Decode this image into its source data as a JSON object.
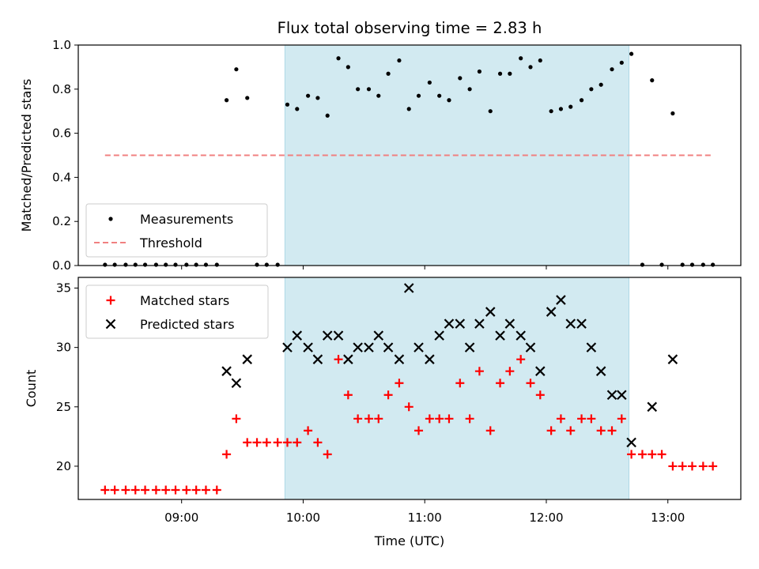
{
  "chart_data": [
    {
      "type": "scatter",
      "title": "Flux total observing time = 2.83 h",
      "xlabel": "",
      "ylabel": "Matched/Predicted stars",
      "xlim_hours": [
        8.15,
        13.6
      ],
      "ylim": [
        0,
        1.0
      ],
      "yticks": [
        "0.0",
        "0.2",
        "0.4",
        "0.6",
        "0.8",
        "1.0"
      ],
      "shaded_interval_hours": [
        9.85,
        12.68
      ],
      "shade_color": "#add8e6",
      "legend_position": "lower-left",
      "series": [
        {
          "name": "Measurements",
          "marker": "dot",
          "color": "#000000",
          "x": [
            8.37,
            8.45,
            8.54,
            8.62,
            8.7,
            8.79,
            8.87,
            8.95,
            9.04,
            9.12,
            9.2,
            9.29,
            9.37,
            9.45,
            9.54,
            9.62,
            9.7,
            9.79,
            9.87,
            9.95,
            10.04,
            10.12,
            10.2,
            10.29,
            10.37,
            10.45,
            10.54,
            10.62,
            10.7,
            10.79,
            10.87,
            10.95,
            11.04,
            11.12,
            11.2,
            11.29,
            11.37,
            11.45,
            11.54,
            11.62,
            11.7,
            11.79,
            11.87,
            11.95,
            12.04,
            12.12,
            12.2,
            12.29,
            12.37,
            12.45,
            12.54,
            12.62,
            12.7,
            12.79,
            12.87,
            12.95,
            13.04,
            13.12,
            13.2,
            13.29,
            13.37
          ],
          "y": [
            0,
            0,
            0,
            0,
            0,
            0,
            0,
            0,
            0,
            0,
            0,
            0,
            0.75,
            0.89,
            0.76,
            0,
            0,
            0,
            0.73,
            0.71,
            0.77,
            0.76,
            0.68,
            0.94,
            0.9,
            0.8,
            0.8,
            0.77,
            0.87,
            0.93,
            0.71,
            0.77,
            0.83,
            0.77,
            0.75,
            0.85,
            0.8,
            0.88,
            0.7,
            0.87,
            0.87,
            0.94,
            0.9,
            0.93,
            0.7,
            0.71,
            0.72,
            0.75,
            0.8,
            0.82,
            0.89,
            0.92,
            0.96,
            0,
            0.84,
            0,
            0.69,
            0,
            0,
            0,
            0
          ]
        },
        {
          "name": "Threshold",
          "marker": "dashed-line",
          "color": "#f08080",
          "x": [
            8.37,
            13.37
          ],
          "y": [
            0.5,
            0.5
          ]
        }
      ]
    },
    {
      "type": "scatter",
      "title": "",
      "xlabel": "Time (UTC)",
      "ylabel": "Count",
      "xlim_hours": [
        8.15,
        13.6
      ],
      "ylim": [
        17.2,
        35.9
      ],
      "yticks": [
        "20",
        "25",
        "30",
        "35"
      ],
      "xticks_hours": [
        9,
        10,
        11,
        12,
        13
      ],
      "xtick_labels": [
        "09:00",
        "10:00",
        "11:00",
        "12:00",
        "13:00"
      ],
      "shaded_interval_hours": [
        9.85,
        12.68
      ],
      "shade_color": "#add8e6",
      "legend_position": "upper-left",
      "series": [
        {
          "name": "Matched stars",
          "marker": "plus",
          "color": "#ff0000",
          "x": [
            8.37,
            8.45,
            8.54,
            8.62,
            8.7,
            8.79,
            8.87,
            8.95,
            9.04,
            9.12,
            9.2,
            9.29,
            9.37,
            9.45,
            9.54,
            9.62,
            9.7,
            9.79,
            9.87,
            9.95,
            10.04,
            10.12,
            10.2,
            10.29,
            10.37,
            10.45,
            10.54,
            10.62,
            10.7,
            10.79,
            10.87,
            10.95,
            11.04,
            11.12,
            11.2,
            11.29,
            11.37,
            11.45,
            11.54,
            11.62,
            11.7,
            11.79,
            11.87,
            11.95,
            12.04,
            12.12,
            12.2,
            12.29,
            12.37,
            12.45,
            12.54,
            12.62,
            12.7,
            12.79,
            12.87,
            12.95,
            13.04,
            13.12,
            13.2,
            13.29,
            13.37
          ],
          "y": [
            18,
            18,
            18,
            18,
            18,
            18,
            18,
            18,
            18,
            18,
            18,
            18,
            21,
            24,
            22,
            22,
            22,
            22,
            22,
            22,
            23,
            22,
            21,
            29,
            26,
            24,
            24,
            24,
            26,
            27,
            25,
            23,
            24,
            24,
            24,
            27,
            24,
            28,
            23,
            27,
            28,
            29,
            27,
            26,
            23,
            24,
            23,
            24,
            24,
            23,
            23,
            24,
            21,
            21,
            21,
            21,
            20,
            20,
            20,
            20,
            20
          ]
        },
        {
          "name": "Predicted stars",
          "marker": "x",
          "color": "#000000",
          "x": [
            9.37,
            9.45,
            9.54,
            9.87,
            9.95,
            10.04,
            10.12,
            10.2,
            10.29,
            10.37,
            10.45,
            10.54,
            10.62,
            10.7,
            10.79,
            10.87,
            10.95,
            11.04,
            11.12,
            11.2,
            11.29,
            11.37,
            11.45,
            11.54,
            11.62,
            11.7,
            11.79,
            11.87,
            11.95,
            12.04,
            12.12,
            12.2,
            12.29,
            12.37,
            12.45,
            12.54,
            12.62,
            12.7,
            12.87,
            13.04
          ],
          "y": [
            28,
            27,
            29,
            30,
            31,
            30,
            29,
            31,
            31,
            29,
            30,
            30,
            31,
            30,
            29,
            35,
            30,
            29,
            31,
            32,
            32,
            30,
            32,
            33,
            31,
            32,
            31,
            30,
            28,
            33,
            34,
            32,
            32,
            30,
            28,
            26,
            26,
            22,
            25,
            29
          ]
        }
      ]
    }
  ]
}
